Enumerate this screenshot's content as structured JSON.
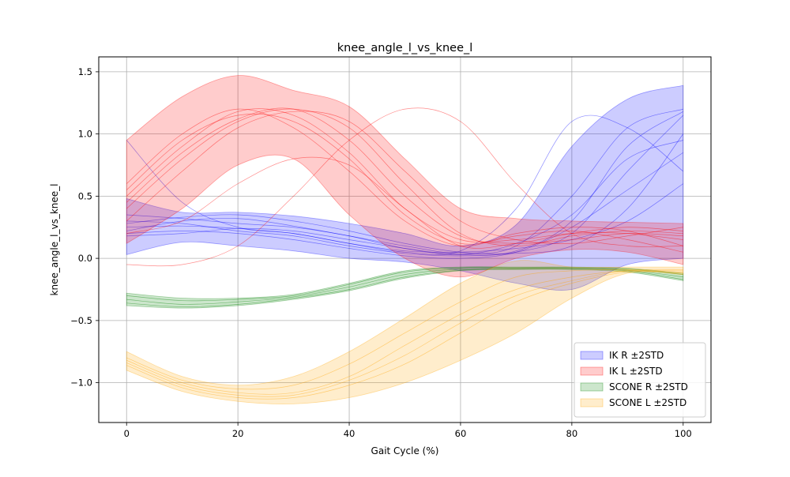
{
  "chart_data": {
    "type": "area",
    "title": "knee_angle_l_vs_knee_l",
    "xlabel": "Gait Cycle (%)",
    "ylabel": "knee_angle_l_vs_knee_l",
    "xlim": [
      -5,
      105
    ],
    "ylim": [
      -1.32,
      1.62
    ],
    "xticks": [
      0,
      20,
      40,
      60,
      80,
      100
    ],
    "yticks": [
      -1.0,
      -0.5,
      0.0,
      0.5,
      1.0,
      1.5
    ],
    "xtick_labels": [
      "0",
      "20",
      "40",
      "60",
      "80",
      "100"
    ],
    "ytick_labels": [
      "−1.0",
      "−0.5",
      "0.0",
      "0.5",
      "1.0",
      "1.5"
    ],
    "grid": true,
    "legend_position": "lower-right",
    "x": [
      0,
      10,
      20,
      30,
      40,
      50,
      60,
      70,
      80,
      90,
      100
    ],
    "series": [
      {
        "name": "IK R ±2STD",
        "color": "#0000ff",
        "fill_alpha": 0.2,
        "upper": [
          0.48,
          0.37,
          0.37,
          0.34,
          0.28,
          0.2,
          0.1,
          0.27,
          0.9,
          1.28,
          1.39
        ],
        "lower": [
          0.03,
          0.13,
          0.1,
          0.06,
          0.0,
          -0.03,
          -0.1,
          -0.2,
          -0.25,
          -0.05,
          0.0
        ],
        "sample_curves": [
          [
            0.3,
            0.28,
            0.22,
            0.18,
            0.1,
            0.04,
            0.02,
            0.05,
            0.2,
            0.7,
            1.15
          ],
          [
            0.22,
            0.3,
            0.32,
            0.26,
            0.18,
            0.1,
            0.04,
            0.1,
            0.5,
            1.05,
            1.2
          ],
          [
            0.25,
            0.26,
            0.24,
            0.2,
            0.12,
            0.06,
            0.05,
            0.08,
            0.15,
            0.3,
            0.6
          ],
          [
            0.35,
            0.32,
            0.28,
            0.25,
            0.18,
            0.08,
            0.03,
            0.12,
            0.35,
            0.8,
            0.95
          ],
          [
            0.2,
            0.22,
            0.2,
            0.15,
            0.08,
            0.02,
            0.0,
            0.05,
            0.25,
            0.55,
            0.85
          ],
          [
            0.95,
            0.45,
            0.25,
            0.2,
            0.12,
            0.05,
            0.06,
            0.4,
            1.1,
            1.05,
            0.7
          ],
          [
            0.28,
            0.33,
            0.35,
            0.3,
            0.22,
            0.12,
            0.05,
            0.04,
            0.1,
            0.4,
            1.0
          ],
          [
            0.18,
            0.2,
            0.24,
            0.22,
            0.15,
            0.08,
            0.03,
            0.06,
            0.3,
            0.9,
            1.18
          ]
        ]
      },
      {
        "name": "IK L ±2STD",
        "color": "#ff0000",
        "fill_alpha": 0.2,
        "upper": [
          0.95,
          1.3,
          1.47,
          1.35,
          1.22,
          0.8,
          0.4,
          0.32,
          0.3,
          0.29,
          0.28
        ],
        "lower": [
          0.12,
          0.4,
          0.75,
          0.8,
          0.35,
          0.0,
          -0.15,
          0.0,
          0.07,
          0.05,
          -0.05
        ],
        "sample_curves": [
          [
            0.5,
            0.9,
            1.18,
            1.15,
            0.85,
            0.4,
            0.15,
            0.15,
            0.2,
            0.2,
            0.15
          ],
          [
            0.4,
            0.8,
            1.1,
            1.2,
            1.05,
            0.6,
            0.2,
            0.1,
            0.18,
            0.22,
            0.2
          ],
          [
            0.6,
            1.0,
            1.2,
            1.05,
            0.7,
            0.3,
            0.1,
            0.2,
            0.25,
            0.22,
            0.1
          ],
          [
            0.3,
            0.7,
            1.05,
            1.18,
            1.1,
            0.7,
            0.3,
            0.15,
            0.12,
            0.18,
            0.25
          ],
          [
            0.55,
            0.95,
            1.15,
            1.1,
            0.8,
            0.35,
            0.12,
            0.18,
            0.22,
            0.15,
            0.05
          ],
          [
            -0.05,
            -0.05,
            0.1,
            0.5,
            0.95,
            1.2,
            1.1,
            0.6,
            0.2,
            0.1,
            0.1
          ],
          [
            0.2,
            0.3,
            0.6,
            0.8,
            0.75,
            0.4,
            0.1,
            0.12,
            0.2,
            0.25,
            0.22
          ],
          [
            0.45,
            0.85,
            1.12,
            1.2,
            0.95,
            0.5,
            0.18,
            0.12,
            0.15,
            0.2,
            0.18
          ]
        ]
      },
      {
        "name": "SCONE R ±2STD",
        "color": "#008000",
        "fill_alpha": 0.2,
        "upper": [
          -0.28,
          -0.32,
          -0.32,
          -0.29,
          -0.2,
          -0.1,
          -0.07,
          -0.07,
          -0.07,
          -0.08,
          -0.12
        ],
        "lower": [
          -0.38,
          -0.4,
          -0.38,
          -0.33,
          -0.26,
          -0.16,
          -0.1,
          -0.09,
          -0.09,
          -0.11,
          -0.18
        ],
        "sample_curves": [
          [
            -0.33,
            -0.37,
            -0.35,
            -0.31,
            -0.23,
            -0.13,
            -0.085,
            -0.08,
            -0.08,
            -0.095,
            -0.15
          ],
          [
            -0.3,
            -0.34,
            -0.33,
            -0.3,
            -0.21,
            -0.11,
            -0.075,
            -0.075,
            -0.075,
            -0.085,
            -0.13
          ],
          [
            -0.36,
            -0.39,
            -0.37,
            -0.32,
            -0.25,
            -0.15,
            -0.095,
            -0.085,
            -0.085,
            -0.1,
            -0.17
          ]
        ]
      },
      {
        "name": "SCONE L ±2STD",
        "color": "#ffa500",
        "fill_alpha": 0.2,
        "upper": [
          -0.75,
          -0.95,
          -1.02,
          -0.95,
          -0.75,
          -0.48,
          -0.2,
          -0.02,
          -0.07,
          -0.07,
          -0.07
        ],
        "lower": [
          -0.9,
          -1.07,
          -1.15,
          -1.17,
          -1.12,
          -1.0,
          -0.82,
          -0.6,
          -0.32,
          -0.12,
          -0.13
        ],
        "sample_curves": [
          [
            -0.82,
            -1.0,
            -1.08,
            -1.08,
            -0.95,
            -0.7,
            -0.45,
            -0.25,
            -0.15,
            -0.1,
            -0.1
          ],
          [
            -0.8,
            -0.98,
            -1.05,
            -1.02,
            -0.85,
            -0.6,
            -0.35,
            -0.15,
            -0.1,
            -0.09,
            -0.09
          ],
          [
            -0.86,
            -1.04,
            -1.12,
            -1.12,
            -1.02,
            -0.85,
            -0.6,
            -0.35,
            -0.2,
            -0.11,
            -0.11
          ],
          [
            -0.84,
            -1.02,
            -1.1,
            -1.1,
            -0.98,
            -0.78,
            -0.52,
            -0.3,
            -0.18,
            -0.1,
            -0.12
          ]
        ]
      }
    ]
  }
}
